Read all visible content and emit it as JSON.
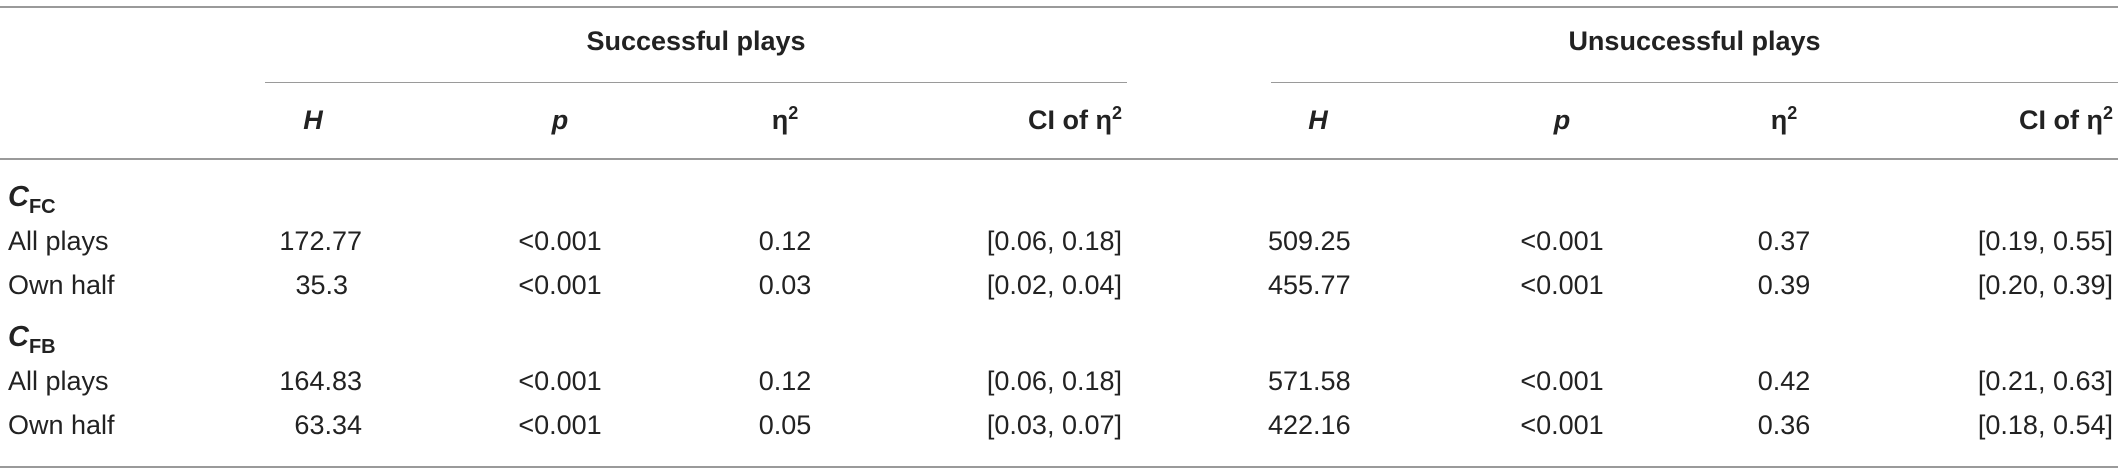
{
  "groups": {
    "successful": "Successful plays",
    "unsuccessful": "Unsuccessful plays"
  },
  "columns": {
    "h": "H",
    "p": "p",
    "eta": "η",
    "eta_sup": "2",
    "ci": "CI of η",
    "ci_sup": "2"
  },
  "sections": [
    {
      "symbol": "C",
      "subscript": "FC",
      "rows": [
        {
          "label": "All plays",
          "s_h": "172.77",
          "s_p": "<0.001",
          "s_eta": "0.12",
          "s_ci": "[0.06, 0.18]",
          "u_h": "509.25",
          "u_p": "<0.001",
          "u_eta": "0.37",
          "u_ci": "[0.19, 0.55]"
        },
        {
          "label": "Own half",
          "s_h": "35.3",
          "s_p": "<0.001",
          "s_eta": "0.03",
          "s_ci": "[0.02, 0.04]",
          "u_h": "455.77",
          "u_p": "<0.001",
          "u_eta": "0.39",
          "u_ci": "[0.20, 0.39]"
        }
      ]
    },
    {
      "symbol": "C",
      "subscript": "FB",
      "rows": [
        {
          "label": "All plays",
          "s_h": "164.83",
          "s_p": "<0.001",
          "s_eta": "0.12",
          "s_ci": "[0.06, 0.18]",
          "u_h": "571.58",
          "u_p": "<0.001",
          "u_eta": "0.42",
          "u_ci": "[0.21, 0.63]"
        },
        {
          "label": "Own half",
          "s_h": "63.34",
          "s_p": "<0.001",
          "s_eta": "0.05",
          "s_ci": "[0.03, 0.07]",
          "u_h": "422.16",
          "u_p": "<0.001",
          "u_eta": "0.36",
          "u_ci": "[0.18, 0.54]"
        }
      ]
    }
  ]
}
